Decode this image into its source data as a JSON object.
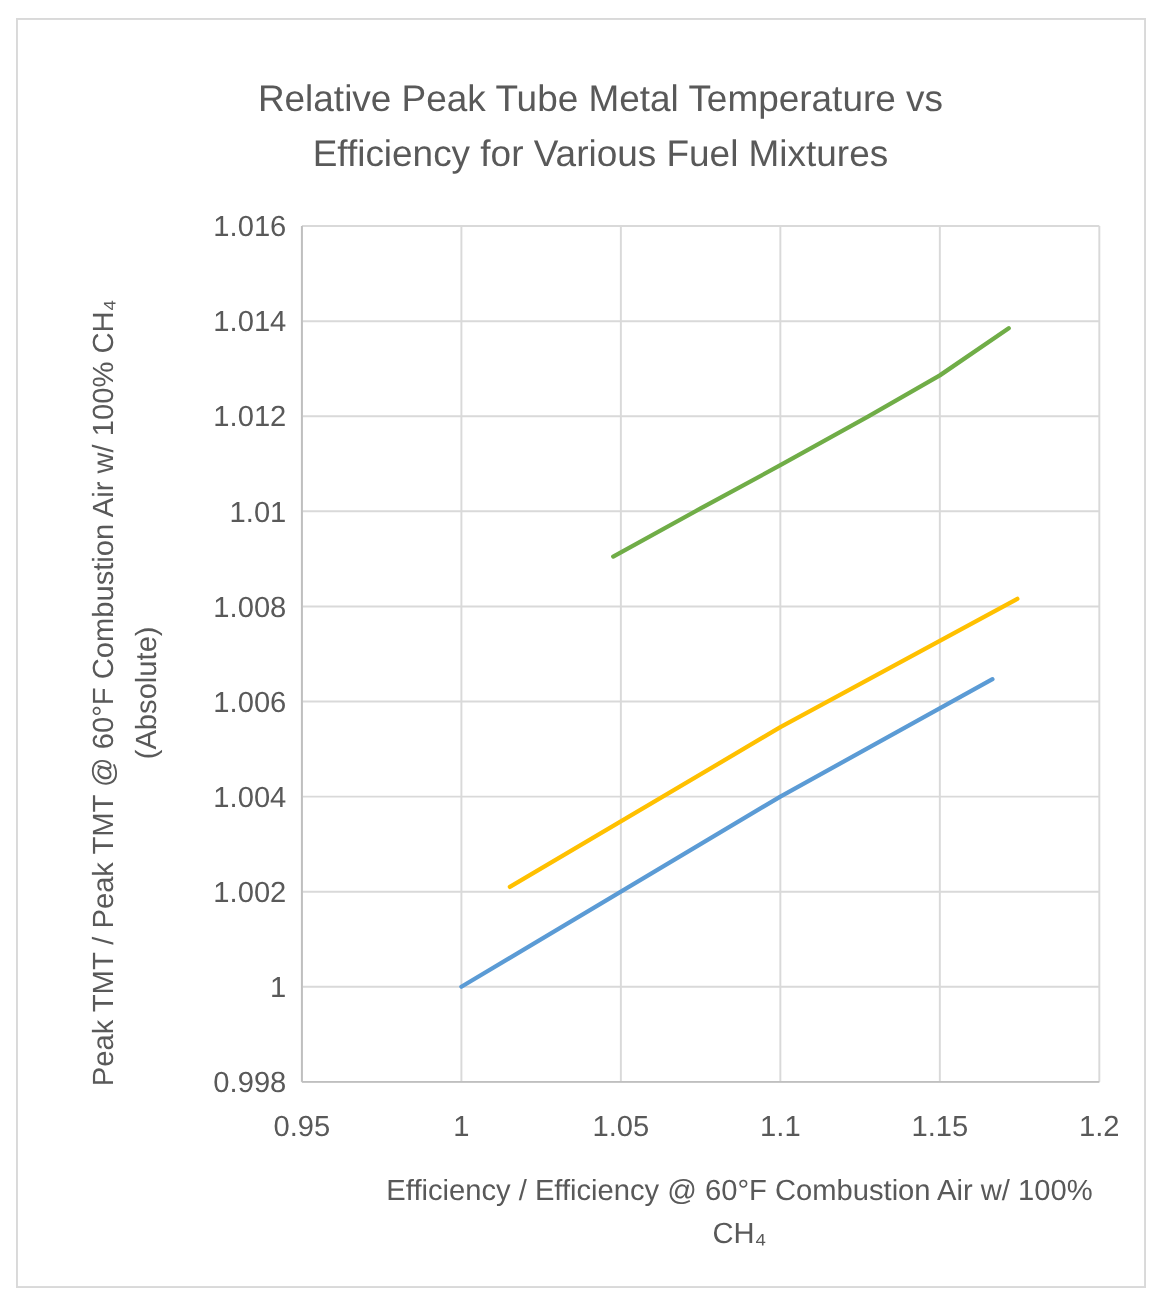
{
  "chart_data": {
    "type": "line",
    "title": "Relative Peak Tube Metal Temperature vs Efficiency for Various Fuel Mixtures",
    "xlabel": "Efficiency / Efficiency @ 60°F Combustion Air w/ 100% CH₄",
    "ylabel": "Peak TMT / Peak TMT @ 60°F Combustion Air w/ 100% CH₄ (Absolute)",
    "series": [
      {
        "color": "#5b9bd5",
        "x": [
          1.0,
          1.1,
          1.1665
        ],
        "values": [
          1.0,
          1.004,
          1.00647
        ]
      },
      {
        "color": "#ffc000",
        "x": [
          1.0152,
          1.1,
          1.1743
        ],
        "values": [
          1.0021,
          1.00546,
          1.00816
        ]
      },
      {
        "color": "#70ad47",
        "x": [
          1.0476,
          1.075,
          1.1,
          1.1276,
          1.15,
          1.1716
        ],
        "values": [
          1.00905,
          1.01006,
          1.01097,
          1.012,
          1.01286,
          1.01385
        ]
      }
    ],
    "xlim": [
      0.95,
      1.2
    ],
    "xticks": [
      0.95,
      1,
      1.05,
      1.1,
      1.15,
      1.2
    ],
    "ylim": [
      0.998,
      1.016
    ],
    "yticks": [
      0.998,
      1,
      1.002,
      1.004,
      1.006,
      1.008,
      1.01,
      1.012,
      1.014,
      1.016
    ],
    "grid": true,
    "marker": "none",
    "line_style": "solid"
  }
}
